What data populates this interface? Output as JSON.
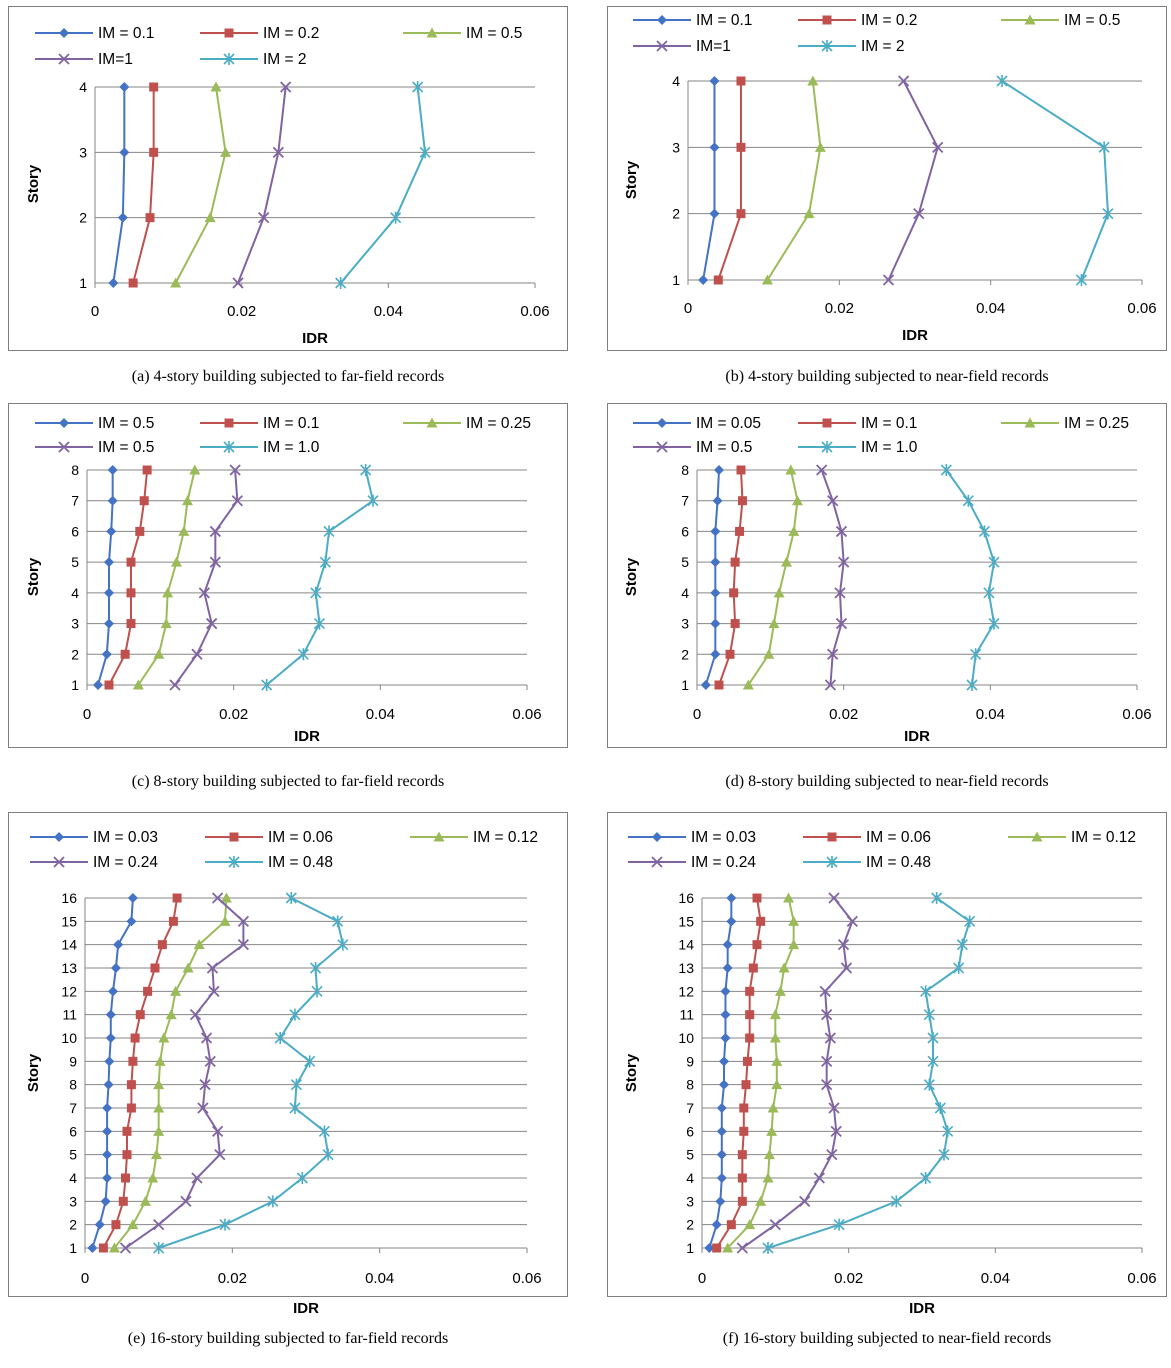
{
  "colors": {
    "s1": "#4472C4",
    "s2": "#C0504D",
    "s3": "#9BBB59",
    "s4": "#8064A2",
    "s5": "#4BACC6",
    "grid": "#868686",
    "frame": "#7f7f7f"
  },
  "chart_data": [
    {
      "type": "line",
      "caption": "(a) 4-story building subjected to far-field records",
      "xlabel": "IDR",
      "ylabel": "Story",
      "xlim": [
        0,
        0.06
      ],
      "xticks": [
        "0",
        "0.02",
        "0.04",
        "0.06"
      ],
      "ylim": [
        1,
        4
      ],
      "yticks": [
        "1",
        "2",
        "3",
        "4"
      ],
      "series": [
        {
          "name": "IM = 0.1",
          "x": [
            0.0025,
            0.0038,
            0.004,
            0.004
          ],
          "y": [
            1,
            2,
            3,
            4
          ]
        },
        {
          "name": "IM = 0.2",
          "x": [
            0.0052,
            0.0075,
            0.008,
            0.008
          ],
          "y": [
            1,
            2,
            3,
            4
          ]
        },
        {
          "name": "IM = 0.5",
          "x": [
            0.011,
            0.0157,
            0.0178,
            0.0165
          ],
          "y": [
            1,
            2,
            3,
            4
          ]
        },
        {
          "name": "IM=1",
          "x": [
            0.0195,
            0.023,
            0.025,
            0.026
          ],
          "y": [
            1,
            2,
            3,
            4
          ]
        },
        {
          "name": "IM = 2",
          "x": [
            0.0335,
            0.041,
            0.045,
            0.044
          ],
          "y": [
            1,
            2,
            3,
            4
          ]
        }
      ]
    },
    {
      "type": "line",
      "caption": "(b)  4-story building subjected to near-field records",
      "xlabel": "IDR",
      "ylabel": "Story",
      "xlim": [
        0,
        0.06
      ],
      "xticks": [
        "0",
        "0.02",
        "0.04",
        "0.06"
      ],
      "ylim": [
        1,
        4
      ],
      "yticks": [
        "1",
        "2",
        "3",
        "4"
      ],
      "series": [
        {
          "name": "IM = 0.1",
          "x": [
            0.002,
            0.0035,
            0.0035,
            0.0035
          ],
          "y": [
            1,
            2,
            3,
            4
          ]
        },
        {
          "name": "IM = 0.2",
          "x": [
            0.004,
            0.007,
            0.007,
            0.007
          ],
          "y": [
            1,
            2,
            3,
            4
          ]
        },
        {
          "name": "IM = 0.5",
          "x": [
            0.0105,
            0.016,
            0.0175,
            0.0165
          ],
          "y": [
            1,
            2,
            3,
            4
          ]
        },
        {
          "name": "IM=1",
          "x": [
            0.0265,
            0.0305,
            0.033,
            0.0285
          ],
          "y": [
            1,
            2,
            3,
            4
          ]
        },
        {
          "name": "IM = 2",
          "x": [
            0.052,
            0.0555,
            0.055,
            0.0415
          ],
          "y": [
            1,
            2,
            3,
            4
          ]
        }
      ]
    },
    {
      "type": "line",
      "caption": "(c) 8-story building subjected to far-field records",
      "xlabel": "IDR",
      "ylabel": "Story",
      "xlim": [
        0,
        0.06
      ],
      "xticks": [
        "0",
        "0.02",
        "0.04",
        "0.06"
      ],
      "ylim": [
        1,
        8
      ],
      "yticks": [
        "1",
        "2",
        "3",
        "4",
        "5",
        "6",
        "7",
        "8"
      ],
      "series": [
        {
          "name": "IM = 0.5",
          "x": [
            0.0015,
            0.0027,
            0.003,
            0.003,
            0.003,
            0.0033,
            0.0035,
            0.0035
          ],
          "y": [
            1,
            2,
            3,
            4,
            5,
            6,
            7,
            8
          ]
        },
        {
          "name": "IM = 0.1",
          "x": [
            0.003,
            0.0052,
            0.006,
            0.006,
            0.006,
            0.0072,
            0.0078,
            0.0082
          ],
          "y": [
            1,
            2,
            3,
            4,
            5,
            6,
            7,
            8
          ]
        },
        {
          "name": "IM = 0.25",
          "x": [
            0.007,
            0.0098,
            0.0108,
            0.011,
            0.0122,
            0.0132,
            0.0137,
            0.0147
          ],
          "y": [
            1,
            2,
            3,
            4,
            5,
            6,
            7,
            8
          ]
        },
        {
          "name": "IM = 0.5",
          "x": [
            0.012,
            0.015,
            0.017,
            0.016,
            0.0175,
            0.0175,
            0.0205,
            0.0202
          ],
          "y": [
            1,
            2,
            3,
            4,
            5,
            6,
            7,
            8
          ]
        },
        {
          "name": "IM = 1.0",
          "x": [
            0.0245,
            0.0295,
            0.0317,
            0.0312,
            0.0325,
            0.033,
            0.039,
            0.038
          ],
          "y": [
            1,
            2,
            3,
            4,
            5,
            6,
            7,
            8
          ]
        }
      ]
    },
    {
      "type": "line",
      "caption": "(d)  8-story building subjected to near-field records",
      "xlabel": "IDR",
      "ylabel": "Story",
      "xlim": [
        0,
        0.06
      ],
      "xticks": [
        "0",
        "0.02",
        "0.04",
        "0.06"
      ],
      "ylim": [
        1,
        8
      ],
      "yticks": [
        "1",
        "2",
        "3",
        "4",
        "5",
        "6",
        "7",
        "8"
      ],
      "series": [
        {
          "name": "IM = 0.05",
          "x": [
            0.0012,
            0.0025,
            0.0025,
            0.0025,
            0.0025,
            0.0025,
            0.0028,
            0.003
          ],
          "y": [
            1,
            2,
            3,
            4,
            5,
            6,
            7,
            8
          ]
        },
        {
          "name": "IM = 0.1",
          "x": [
            0.003,
            0.0045,
            0.0052,
            0.005,
            0.0052,
            0.0058,
            0.0062,
            0.006
          ],
          "y": [
            1,
            2,
            3,
            4,
            5,
            6,
            7,
            8
          ]
        },
        {
          "name": "IM = 0.25",
          "x": [
            0.007,
            0.0098,
            0.0105,
            0.0112,
            0.0122,
            0.0132,
            0.0137,
            0.0128
          ],
          "y": [
            1,
            2,
            3,
            4,
            5,
            6,
            7,
            8
          ]
        },
        {
          "name": "IM = 0.5",
          "x": [
            0.0182,
            0.0185,
            0.0197,
            0.0195,
            0.02,
            0.0197,
            0.0185,
            0.017
          ],
          "y": [
            1,
            2,
            3,
            4,
            5,
            6,
            7,
            8
          ]
        },
        {
          "name": "IM = 1.0",
          "x": [
            0.0375,
            0.038,
            0.0405,
            0.0398,
            0.0405,
            0.0392,
            0.037,
            0.034
          ],
          "y": [
            1,
            2,
            3,
            4,
            5,
            6,
            7,
            8
          ]
        }
      ]
    },
    {
      "type": "line",
      "caption": "(e) 16-story building subjected to far-field records",
      "xlabel": "IDR",
      "ylabel": "Story",
      "xlim": [
        0,
        0.06
      ],
      "xticks": [
        "0",
        "0.02",
        "0.04",
        "0.06"
      ],
      "ylim": [
        1,
        16
      ],
      "yticks": [
        "1",
        "2",
        "3",
        "4",
        "5",
        "6",
        "7",
        "8",
        "9",
        "10",
        "11",
        "12",
        "13",
        "14",
        "15",
        "16"
      ],
      "series": [
        {
          "name": "IM = 0.03",
          "x": [
            0.001,
            0.002,
            0.0028,
            0.003,
            0.003,
            0.003,
            0.003,
            0.0032,
            0.0033,
            0.0035,
            0.0035,
            0.0038,
            0.0042,
            0.0045,
            0.0063,
            0.0065
          ],
          "y": [
            1,
            2,
            3,
            4,
            5,
            6,
            7,
            8,
            9,
            10,
            11,
            12,
            13,
            14,
            15,
            16
          ]
        },
        {
          "name": "IM = 0.06",
          "x": [
            0.0025,
            0.0042,
            0.0052,
            0.0055,
            0.0057,
            0.0057,
            0.0063,
            0.0063,
            0.0065,
            0.0068,
            0.0075,
            0.0085,
            0.0095,
            0.0105,
            0.012,
            0.0125
          ],
          "y": [
            1,
            2,
            3,
            4,
            5,
            6,
            7,
            8,
            9,
            10,
            11,
            12,
            13,
            14,
            15,
            16
          ]
        },
        {
          "name": "IM = 0.12",
          "x": [
            0.004,
            0.0065,
            0.0082,
            0.0092,
            0.0097,
            0.01,
            0.01,
            0.01,
            0.0102,
            0.0107,
            0.0117,
            0.0123,
            0.014,
            0.0155,
            0.019,
            0.0192
          ],
          "y": [
            1,
            2,
            3,
            4,
            5,
            6,
            7,
            8,
            9,
            10,
            11,
            12,
            13,
            14,
            15,
            16
          ]
        },
        {
          "name": "IM = 0.24",
          "x": [
            0.0055,
            0.01,
            0.0137,
            0.0152,
            0.0183,
            0.018,
            0.016,
            0.0163,
            0.017,
            0.0165,
            0.015,
            0.0175,
            0.0173,
            0.0215,
            0.0215,
            0.018
          ],
          "y": [
            1,
            2,
            3,
            4,
            5,
            6,
            7,
            8,
            9,
            10,
            11,
            12,
            13,
            14,
            15,
            16
          ]
        },
        {
          "name": "IM = 0.48",
          "x": [
            0.01,
            0.019,
            0.0255,
            0.0295,
            0.033,
            0.0325,
            0.0285,
            0.0287,
            0.0305,
            0.0265,
            0.0285,
            0.0315,
            0.0313,
            0.035,
            0.0343,
            0.028
          ],
          "y": [
            1,
            2,
            3,
            4,
            5,
            6,
            7,
            8,
            9,
            10,
            11,
            12,
            13,
            14,
            15,
            16
          ]
        }
      ]
    },
    {
      "type": "line",
      "caption": "(f)  16-story building subjected to near-field records",
      "xlabel": "IDR",
      "ylabel": "Story",
      "xlim": [
        0,
        0.06
      ],
      "xticks": [
        "0",
        "0.02",
        "0.04",
        "0.06"
      ],
      "ylim": [
        1,
        16
      ],
      "yticks": [
        "1",
        "2",
        "3",
        "4",
        "5",
        "6",
        "7",
        "8",
        "9",
        "10",
        "11",
        "12",
        "13",
        "14",
        "15",
        "16"
      ],
      "series": [
        {
          "name": "IM = 0.03",
          "x": [
            0.001,
            0.002,
            0.0025,
            0.0027,
            0.0027,
            0.0027,
            0.0027,
            0.003,
            0.003,
            0.0032,
            0.0032,
            0.0032,
            0.0035,
            0.0035,
            0.004,
            0.004
          ],
          "y": [
            1,
            2,
            3,
            4,
            5,
            6,
            7,
            8,
            9,
            10,
            11,
            12,
            13,
            14,
            15,
            16
          ]
        },
        {
          "name": "IM = 0.06",
          "x": [
            0.002,
            0.004,
            0.0055,
            0.0055,
            0.0055,
            0.0057,
            0.0057,
            0.006,
            0.0062,
            0.0065,
            0.0065,
            0.0065,
            0.007,
            0.0075,
            0.008,
            0.0075
          ],
          "y": [
            1,
            2,
            3,
            4,
            5,
            6,
            7,
            8,
            9,
            10,
            11,
            12,
            13,
            14,
            15,
            16
          ]
        },
        {
          "name": "IM = 0.12",
          "x": [
            0.0035,
            0.0065,
            0.008,
            0.009,
            0.0092,
            0.0095,
            0.0097,
            0.0102,
            0.0102,
            0.01,
            0.01,
            0.0107,
            0.0112,
            0.0125,
            0.0125,
            0.0118
          ],
          "y": [
            1,
            2,
            3,
            4,
            5,
            6,
            7,
            8,
            9,
            10,
            11,
            12,
            13,
            14,
            15,
            16
          ]
        },
        {
          "name": "IM = 0.24",
          "x": [
            0.0055,
            0.01,
            0.014,
            0.016,
            0.0177,
            0.0183,
            0.018,
            0.017,
            0.017,
            0.0175,
            0.017,
            0.0168,
            0.0197,
            0.0193,
            0.0205,
            0.018
          ],
          "y": [
            1,
            2,
            3,
            4,
            5,
            6,
            7,
            8,
            9,
            10,
            11,
            12,
            13,
            14,
            15,
            16
          ]
        },
        {
          "name": "IM = 0.48",
          "x": [
            0.009,
            0.0187,
            0.0265,
            0.0305,
            0.033,
            0.0335,
            0.0325,
            0.031,
            0.0315,
            0.0315,
            0.031,
            0.0305,
            0.035,
            0.0355,
            0.0365,
            0.032
          ],
          "y": [
            1,
            2,
            3,
            4,
            5,
            6,
            7,
            8,
            9,
            10,
            11,
            12,
            13,
            14,
            15,
            16
          ]
        }
      ]
    }
  ]
}
